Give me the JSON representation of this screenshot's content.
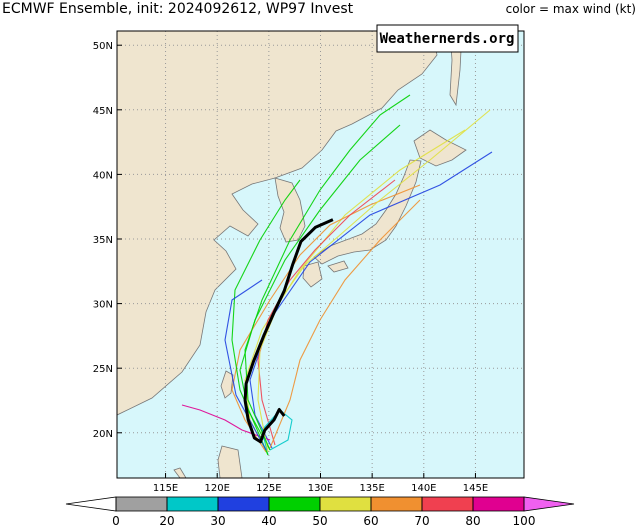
{
  "title": "ECMWF Ensemble, init: 2024092612, WP97 Invest",
  "watermark": "Weathernerds.org",
  "map": {
    "xlim": [
      110.3,
      149.7
    ],
    "ylim": [
      16.5,
      51.1
    ],
    "xticks": [
      {
        "value": 115,
        "label": "115E"
      },
      {
        "value": 120,
        "label": "120E"
      },
      {
        "value": 125,
        "label": "125E"
      },
      {
        "value": 130,
        "label": "130E"
      },
      {
        "value": 135,
        "label": "135E"
      },
      {
        "value": 140,
        "label": "140E"
      },
      {
        "value": 145,
        "label": "145E"
      }
    ],
    "yticks": [
      {
        "value": 20,
        "label": "20N"
      },
      {
        "value": 25,
        "label": "25N"
      },
      {
        "value": 30,
        "label": "30N"
      },
      {
        "value": 35,
        "label": "35N"
      },
      {
        "value": 40,
        "label": "40N"
      },
      {
        "value": 45,
        "label": "45N"
      },
      {
        "value": 50,
        "label": "50N"
      }
    ],
    "grid": true,
    "mean_track": {
      "color": "#000000",
      "lon": [
        126.5,
        126.0,
        125.5,
        124.6,
        124.2,
        123.6,
        123.0,
        122.7,
        122.8,
        123.5,
        124.5,
        125.5,
        126.5,
        127.3,
        128.1,
        129.5,
        131.2
      ],
      "lat": [
        21.3,
        21.8,
        21.0,
        20.2,
        19.3,
        19.6,
        21.0,
        22.5,
        23.8,
        25.5,
        27.5,
        29.3,
        31.0,
        33.0,
        34.8,
        35.9,
        36.5
      ]
    }
  },
  "colorbar": {
    "title": "color = max wind (kt)",
    "ticks": [
      0,
      20,
      30,
      40,
      50,
      60,
      70,
      80,
      100
    ],
    "colors": [
      "#a0a0a0",
      "#00c8c8",
      "#2040e0",
      "#00d000",
      "#e0e040",
      "#f09030",
      "#f04050",
      "#e00090"
    ],
    "under_color": "#ffffff",
    "over_color": "#f060f0"
  }
}
